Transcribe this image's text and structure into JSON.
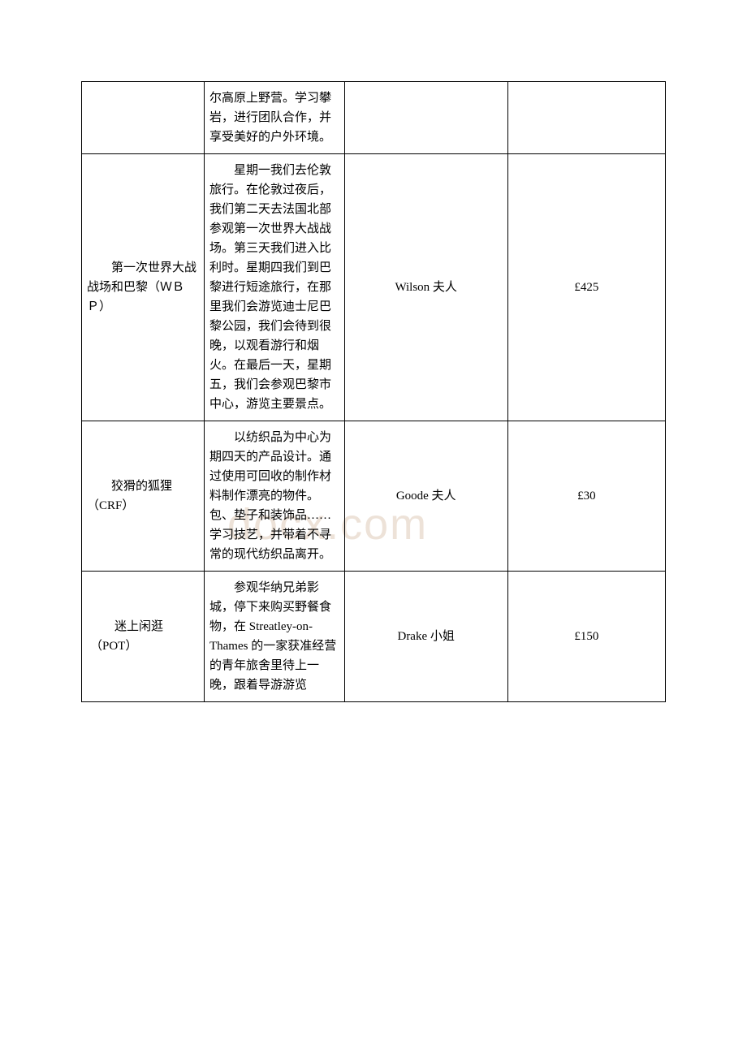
{
  "watermark": "docx.com",
  "rows": [
    {
      "title": "",
      "desc": "尔高原上野营。学习攀岩，进行团队合作，并享受美好的户外环境。",
      "teacher": "",
      "cost": ""
    },
    {
      "title": "　　第一次世界大战战场和巴黎（ＷＢＰ）",
      "desc": "星期一我们去伦敦旅行。在伦敦过夜后，我们第二天去法国北部参观第一次世界大战战场。第三天我们进入比利时。星期四我们到巴黎进行短途旅行，在那里我们会游览迪士尼巴黎公园，我们会待到很晚，以观看游行和烟火。在最后一天，星期五，我们会参观巴黎市中心，游览主要景点。",
      "teacher": "Wilson 夫人",
      "cost": "£425"
    },
    {
      "title": "　　狡猾的狐狸（CRF）",
      "desc": "以纺织品为中心为期四天的产品设计。通过使用可回收的制作材料制作漂亮的物件。包、垫子和装饰品……学习技艺，并带着不寻常的现代纺织品离开。",
      "teacher": "Goode 夫人",
      "cost": "£30"
    },
    {
      "title": "　　迷上闲逛（POT）",
      "desc": "参观华纳兄弟影城，停下来购买野餐食物，在 Streatley-on-Thames 的一家获准经营的青年旅舍里待上一晚，跟着导游游览",
      "teacher": "Drake 小姐",
      "cost": "£150"
    }
  ]
}
